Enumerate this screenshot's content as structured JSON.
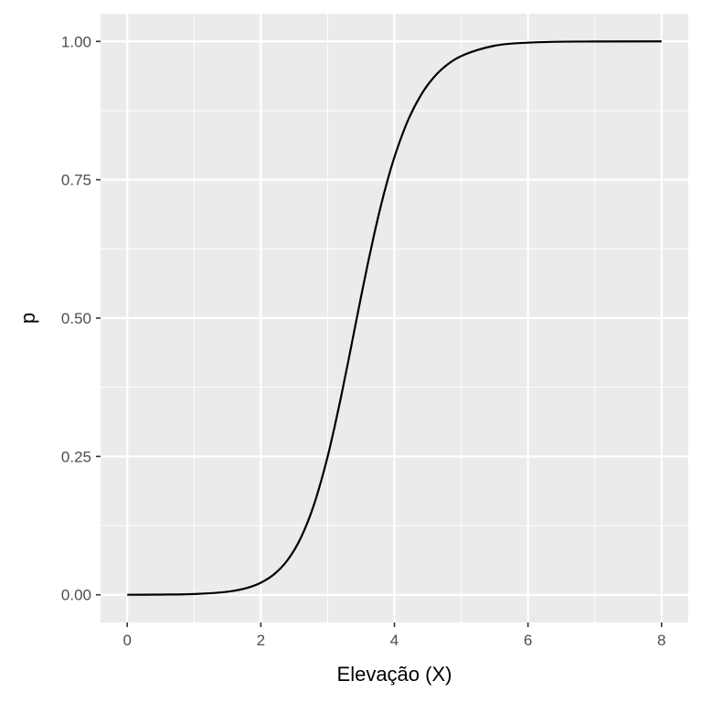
{
  "chart_data": {
    "type": "line",
    "title": "",
    "xlabel": "Elevação (X)",
    "ylabel": "p",
    "xlim": [
      -0.4,
      8.4
    ],
    "ylim": [
      -0.05,
      1.05
    ],
    "x_ticks": [
      0,
      2,
      4,
      6,
      8
    ],
    "x_tick_labels": [
      "0",
      "2",
      "4",
      "6",
      "8"
    ],
    "y_ticks": [
      0,
      0.25,
      0.5,
      0.75,
      1
    ],
    "y_tick_labels": [
      "0.00",
      "0.25",
      "0.50",
      "0.75",
      "1.00"
    ],
    "grid": true,
    "legend": "none",
    "series": [
      {
        "color": "#000000",
        "x": [
          0,
          0.5,
          1,
          1.5,
          1.8,
          2,
          2.2,
          2.4,
          2.6,
          2.8,
          3,
          3.1,
          3.2,
          3.3,
          3.4,
          3.5,
          3.6,
          3.7,
          3.8,
          3.9,
          4,
          4.2,
          4.4,
          4.6,
          4.8,
          5,
          5.5,
          6,
          7,
          8
        ],
        "y": [
          0.0001,
          0.0004,
          0.0014,
          0.0056,
          0.0127,
          0.0219,
          0.0373,
          0.0627,
          0.1032,
          0.1645,
          0.2497,
          0.3012,
          0.3572,
          0.4165,
          0.4775,
          0.5384,
          0.5974,
          0.6531,
          0.7043,
          0.7503,
          0.7908,
          0.8564,
          0.9036,
          0.9364,
          0.9587,
          0.9734,
          0.9922,
          0.9977,
          0.9998,
          1.0
        ]
      }
    ]
  }
}
